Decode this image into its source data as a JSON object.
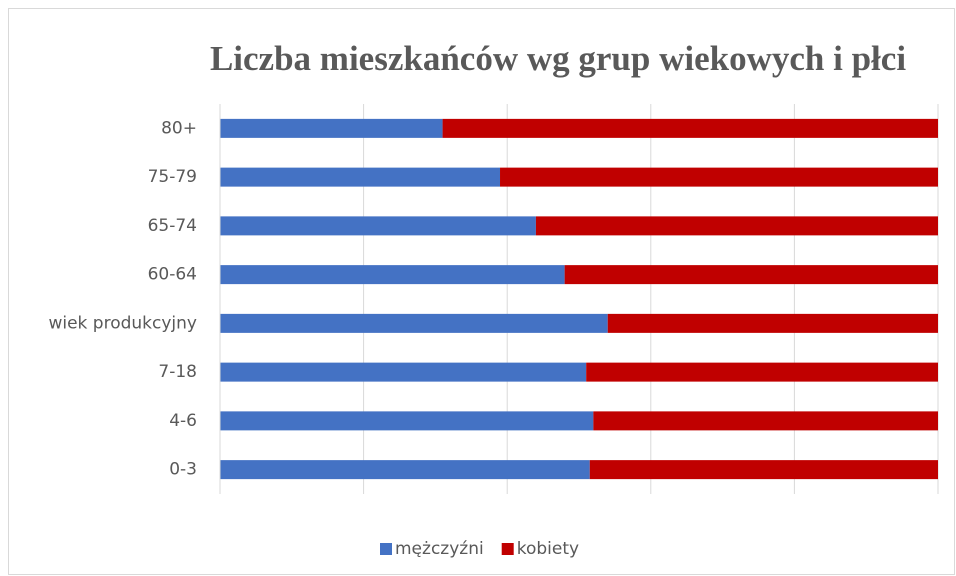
{
  "chart_data": {
    "type": "stacked_bar_horizontal_100",
    "title": "Liczba mieszkańców wg grup wiekowych i płci",
    "categories": [
      "80+",
      "75-79",
      "65-74",
      "60-64",
      "wiek produkcyjny",
      "7-18",
      "4-6",
      "0-3"
    ],
    "series": [
      {
        "name": "mężczyźni",
        "color": "#4472c4",
        "values": [
          31,
          39,
          44,
          48,
          54,
          51,
          52,
          51.5
        ]
      },
      {
        "name": "kobiety",
        "color": "#c00000",
        "values": [
          69,
          61,
          56,
          52,
          46,
          49,
          48,
          48.5
        ]
      }
    ],
    "xlim": [
      0,
      100
    ],
    "xticks": [
      0,
      20,
      40,
      60,
      80,
      100
    ],
    "grid": true,
    "legend": "bottom"
  }
}
